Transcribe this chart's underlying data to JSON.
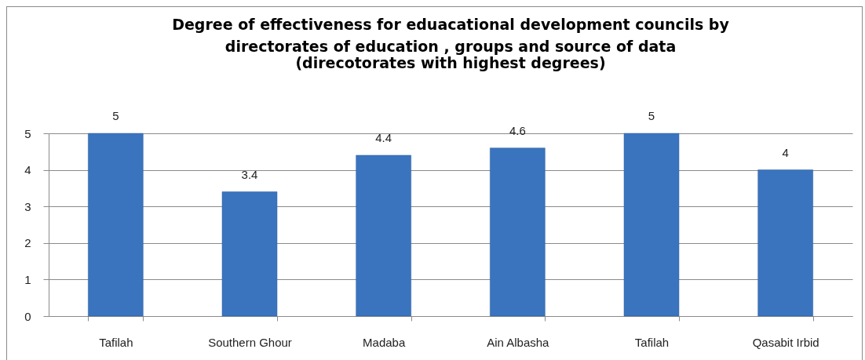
{
  "chart_data": {
    "type": "bar",
    "title": "Degree of effectiveness for eduacational development councils by directorates of education , groups and source of data",
    "subtitle": "(direcotorates with highest degrees)",
    "categories": [
      "Tafilah",
      "Southern Ghour",
      "Madaba",
      "Ain Albasha",
      "Tafilah",
      "Qasabit Irbid"
    ],
    "values": [
      5,
      3.4,
      4.4,
      4.6,
      5,
      4
    ],
    "color": "#3a74be",
    "ylim": [
      0,
      5
    ],
    "yticks": [
      0,
      1,
      2,
      3,
      4,
      5
    ],
    "grid": "y",
    "data_labels": true
  }
}
